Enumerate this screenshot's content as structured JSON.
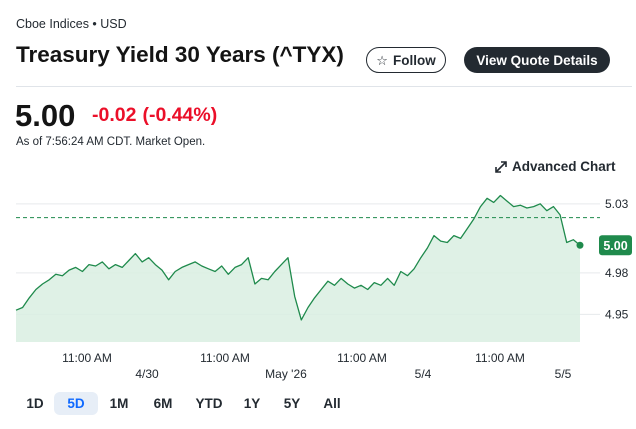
{
  "header": {
    "exchange": "Cboe Indices • USD",
    "title": "Treasury Yield 30 Years (^TYX)",
    "follow_label": "Follow",
    "view_quote_label": "View Quote Details"
  },
  "quote": {
    "price": "5.00",
    "change": "-0.02",
    "change_pct": "(-0.44%)",
    "as_of": "As of 7:56:24 AM CDT. Market Open."
  },
  "advanced_chart_label": "Advanced Chart",
  "colors": {
    "line": "#1f8a4c",
    "fill": "#d9efe2",
    "negative": "#eb0f29",
    "badge": "#1f8a4c",
    "active_range": "#0f69ff"
  },
  "ranges": {
    "items": [
      "1D",
      "5D",
      "1M",
      "6M",
      "YTD",
      "1Y",
      "5Y",
      "All"
    ],
    "selected": "5D"
  },
  "chart_data": {
    "type": "area",
    "y_ticks": [
      "5.03",
      "4.98",
      "4.95"
    ],
    "current_value_label": "5.00",
    "previous_close": 5.02,
    "ylim": [
      4.93,
      5.04
    ],
    "x_time_labels": [
      "11:00 AM",
      "11:00 AM",
      "11:00 AM",
      "11:00 AM"
    ],
    "x_date_labels": [
      "4/30",
      "May '26",
      "5/4",
      "5/5"
    ],
    "grid": true,
    "series": [
      {
        "values": [
          4.953,
          4.955,
          4.962,
          4.968,
          4.972,
          4.975,
          4.979,
          4.978,
          4.982,
          4.984,
          4.981,
          4.986,
          4.985,
          4.988,
          4.983,
          4.986,
          4.984,
          4.989,
          4.994,
          4.988,
          4.991,
          4.986,
          4.982,
          4.975,
          4.981,
          4.984,
          4.986,
          4.988,
          4.985,
          4.983,
          4.981,
          4.985,
          4.979,
          4.984,
          4.986,
          4.991,
          4.972,
          4.976,
          4.975,
          4.981,
          4.986,
          4.991,
          4.963,
          4.946,
          4.955,
          4.962,
          4.968,
          4.974,
          4.971,
          4.976,
          4.972,
          4.969,
          4.971,
          4.968,
          4.973,
          4.971,
          4.976,
          4.971,
          4.981,
          4.978,
          4.983,
          4.991,
          4.998,
          5.007,
          5.003,
          5.002,
          5.007,
          5.005,
          5.012,
          5.019,
          5.028,
          5.034,
          5.031,
          5.036,
          5.032,
          5.028,
          5.029,
          5.027,
          5.028,
          5.03,
          5.025,
          5.028,
          5.022,
          5.002,
          5.004,
          5.0
        ]
      }
    ]
  }
}
